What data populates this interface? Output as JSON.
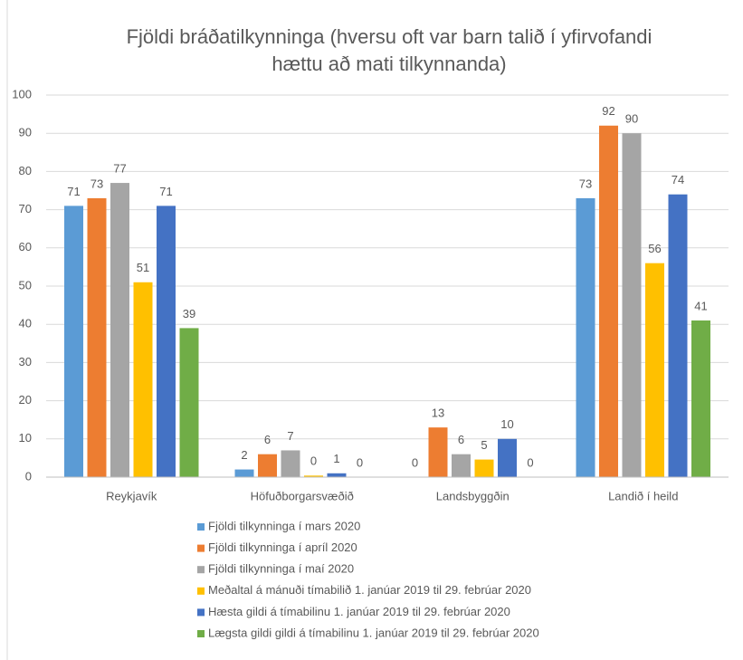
{
  "chart_data": {
    "type": "bar",
    "title": [
      "Fjöldi bráðatilkynninga (hversu oft var barn talið í yfirvofandi",
      "hættu að mati tilkynnanda)"
    ],
    "categories": [
      "Reykjavík",
      "Höfuðborgarsvæðið",
      "Landsbyggðin",
      "Landið í heild"
    ],
    "series": [
      {
        "name": "Fjöldi tilkynninga í mars 2020",
        "color": "#5b9bd5",
        "values": [
          71,
          2,
          0,
          73
        ]
      },
      {
        "name": "Fjöldi tilkynninga í apríl 2020",
        "color": "#ed7d31",
        "values": [
          73,
          6,
          13,
          92
        ]
      },
      {
        "name": "Fjöldi tilkynninga í maí 2020",
        "color": "#a5a5a5",
        "values": [
          77,
          7,
          6,
          90
        ]
      },
      {
        "name": "Meðaltal á mánuði tímabilið 1. janúar 2019 til 29. febrúar 2020",
        "color": "#ffc000",
        "values": [
          51,
          0.4,
          4.6,
          56
        ],
        "value_labels": [
          "51",
          "0",
          "5",
          "56"
        ]
      },
      {
        "name": "Hæsta gildi á tímabilinu 1. janúar 2019 til 29. febrúar 2020",
        "color": "#4472c4",
        "values": [
          71,
          1,
          10,
          74
        ]
      },
      {
        "name": "Lægsta gildi gildi á tímabilinu 1. janúar 2019 til 29. febrúar 2020",
        "color": "#70ad47",
        "values": [
          39,
          0,
          0,
          41
        ]
      }
    ],
    "ylim": [
      0,
      100
    ],
    "yticks": [
      0,
      10,
      20,
      30,
      40,
      50,
      60,
      70,
      80,
      90,
      100
    ],
    "grid": true,
    "legend": "bottom"
  }
}
